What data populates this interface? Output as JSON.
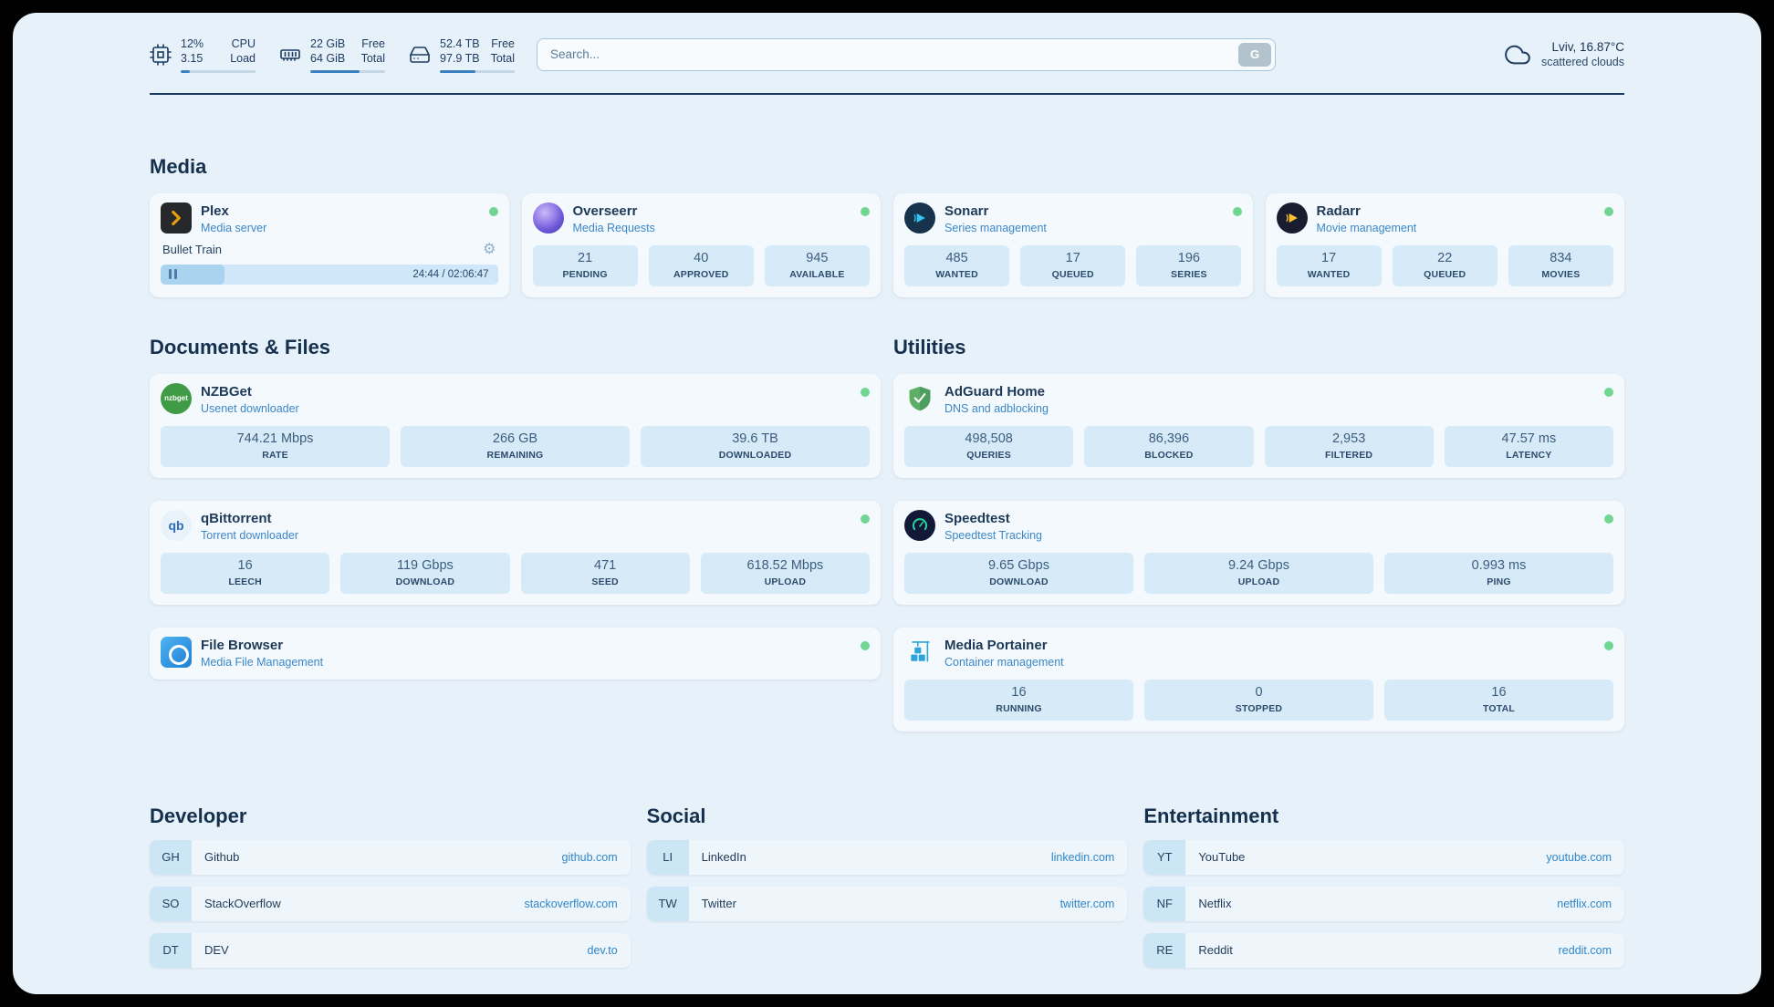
{
  "theme": {
    "background": "#e7f1f9",
    "card": "#f3f9fd",
    "stat_block": "#d6eaf8",
    "text_dark": "#1e3a58",
    "accent_blue": "#3a7fbf",
    "link_blue": "#2f86c9",
    "status_green": "#72d693"
  },
  "topbar": {
    "cpu": {
      "usage": "12%",
      "usage_label": "CPU",
      "load": "3.15",
      "load_label": "Load",
      "bar_pct": 12
    },
    "memory": {
      "free": "22 GiB",
      "free_label": "Free",
      "total": "64 GiB",
      "total_label": "Total",
      "bar_pct": 66
    },
    "disk": {
      "free": "52.4 TB",
      "free_label": "Free",
      "total": "97.9 TB",
      "total_label": "Total",
      "bar_pct": 47
    },
    "search": {
      "placeholder": "Search...",
      "button_label": "G"
    },
    "weather": {
      "location": "Lviv, 16.87°C",
      "condition": "scattered clouds"
    }
  },
  "icons": {
    "gear": "⚙",
    "nzbget_label": "nzbget",
    "qbittorrent_label": "qb"
  },
  "media": {
    "title": "Media",
    "plex": {
      "name": "Plex",
      "subtitle": "Media server",
      "now_playing": {
        "title": "Bullet Train",
        "time": "24:44 / 02:06:47",
        "progress_pct": 19
      }
    },
    "overseerr": {
      "name": "Overseerr",
      "subtitle": "Media Requests",
      "stats": [
        {
          "value": "21",
          "label": "PENDING"
        },
        {
          "value": "40",
          "label": "APPROVED"
        },
        {
          "value": "945",
          "label": "AVAILABLE"
        }
      ]
    },
    "sonarr": {
      "name": "Sonarr",
      "subtitle": "Series management",
      "stats": [
        {
          "value": "485",
          "label": "WANTED"
        },
        {
          "value": "17",
          "label": "QUEUED"
        },
        {
          "value": "196",
          "label": "SERIES"
        }
      ]
    },
    "radarr": {
      "name": "Radarr",
      "subtitle": "Movie management",
      "stats": [
        {
          "value": "17",
          "label": "WANTED"
        },
        {
          "value": "22",
          "label": "QUEUED"
        },
        {
          "value": "834",
          "label": "MOVIES"
        }
      ]
    }
  },
  "documents": {
    "title": "Documents & Files",
    "nzbget": {
      "name": "NZBGet",
      "subtitle": "Usenet downloader",
      "stats": [
        {
          "value": "744.21 Mbps",
          "label": "RATE"
        },
        {
          "value": "266 GB",
          "label": "REMAINING"
        },
        {
          "value": "39.6 TB",
          "label": "DOWNLOADED"
        }
      ]
    },
    "qbittorrent": {
      "name": "qBittorrent",
      "subtitle": "Torrent downloader",
      "stats": [
        {
          "value": "16",
          "label": "LEECH"
        },
        {
          "value": "119 Gbps",
          "label": "DOWNLOAD"
        },
        {
          "value": "471",
          "label": "SEED"
        },
        {
          "value": "618.52 Mbps",
          "label": "UPLOAD"
        }
      ]
    },
    "filebrowser": {
      "name": "File Browser",
      "subtitle": "Media File Management"
    }
  },
  "utilities": {
    "title": "Utilities",
    "adguard": {
      "name": "AdGuard Home",
      "subtitle": "DNS and adblocking",
      "stats": [
        {
          "value": "498,508",
          "label": "QUERIES"
        },
        {
          "value": "86,396",
          "label": "BLOCKED"
        },
        {
          "value": "2,953",
          "label": "FILTERED"
        },
        {
          "value": "47.57 ms",
          "label": "LATENCY"
        }
      ]
    },
    "speedtest": {
      "name": "Speedtest",
      "subtitle": "Speedtest Tracking",
      "stats": [
        {
          "value": "9.65 Gbps",
          "label": "DOWNLOAD"
        },
        {
          "value": "9.24 Gbps",
          "label": "UPLOAD"
        },
        {
          "value": "0.993 ms",
          "label": "PING"
        }
      ]
    },
    "portainer": {
      "name": "Media Portainer",
      "subtitle": "Container management",
      "stats": [
        {
          "value": "16",
          "label": "RUNNING"
        },
        {
          "value": "0",
          "label": "STOPPED"
        },
        {
          "value": "16",
          "label": "TOTAL"
        }
      ]
    }
  },
  "bookmarks": {
    "developer": {
      "title": "Developer",
      "items": [
        {
          "abbr": "GH",
          "name": "Github",
          "url": "github.com"
        },
        {
          "abbr": "SO",
          "name": "StackOverflow",
          "url": "stackoverflow.com"
        },
        {
          "abbr": "DT",
          "name": "DEV",
          "url": "dev.to"
        }
      ]
    },
    "social": {
      "title": "Social",
      "items": [
        {
          "abbr": "LI",
          "name": "LinkedIn",
          "url": "linkedin.com"
        },
        {
          "abbr": "TW",
          "name": "Twitter",
          "url": "twitter.com"
        }
      ]
    },
    "entertainment": {
      "title": "Entertainment",
      "items": [
        {
          "abbr": "YT",
          "name": "YouTube",
          "url": "youtube.com"
        },
        {
          "abbr": "NF",
          "name": "Netflix",
          "url": "netflix.com"
        },
        {
          "abbr": "RE",
          "name": "Reddit",
          "url": "reddit.com"
        }
      ]
    }
  }
}
